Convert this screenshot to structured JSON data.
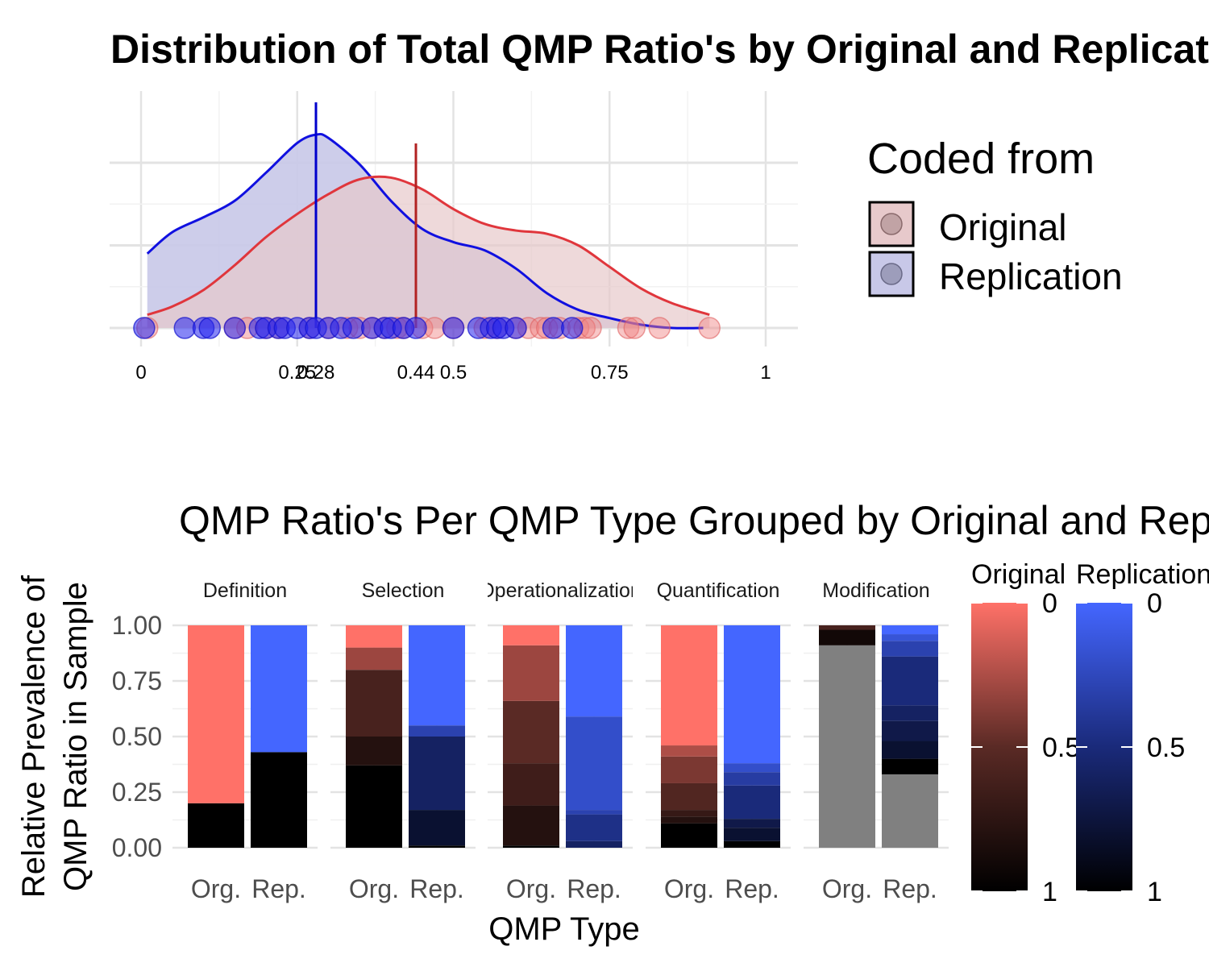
{
  "chart_data": [
    {
      "type": "density",
      "title": "Distribution of Total QMP Ratio's by Original and Replication",
      "xlim": [
        0,
        1
      ],
      "x_ticks": [
        "0",
        "0.25",
        "0.28",
        "0.44",
        "0.5",
        "0.75",
        "1"
      ],
      "x_tick_values": [
        0,
        0.25,
        0.28,
        0.44,
        0.5,
        0.75,
        1
      ],
      "y_ticks_labeled": false,
      "grid": true,
      "legend": {
        "title": "Coded from",
        "position": "right"
      },
      "series": [
        {
          "name": "Original",
          "color": "#e0363c",
          "fill": "#e7c9cb",
          "mean_line": 0.44,
          "density_curve": [
            [
              0.01,
              0.08
            ],
            [
              0.05,
              0.13
            ],
            [
              0.1,
              0.23
            ],
            [
              0.15,
              0.38
            ],
            [
              0.2,
              0.55
            ],
            [
              0.25,
              0.69
            ],
            [
              0.3,
              0.81
            ],
            [
              0.35,
              0.9
            ],
            [
              0.4,
              0.91
            ],
            [
              0.45,
              0.84
            ],
            [
              0.5,
              0.72
            ],
            [
              0.55,
              0.63
            ],
            [
              0.6,
              0.59
            ],
            [
              0.65,
              0.57
            ],
            [
              0.7,
              0.5
            ],
            [
              0.75,
              0.37
            ],
            [
              0.8,
              0.24
            ],
            [
              0.85,
              0.15
            ],
            [
              0.91,
              0.08
            ]
          ],
          "points": [
            0.01,
            0.15,
            0.17,
            0.2,
            0.22,
            0.27,
            0.3,
            0.33,
            0.35,
            0.37,
            0.39,
            0.41,
            0.42,
            0.45,
            0.47,
            0.5,
            0.55,
            0.57,
            0.6,
            0.62,
            0.64,
            0.65,
            0.67,
            0.7,
            0.71,
            0.72,
            0.78,
            0.79,
            0.83,
            0.91
          ]
        },
        {
          "name": "Replication",
          "color": "#1010e0",
          "fill": "#c8c8e8",
          "mean_line": 0.28,
          "density_curve": [
            [
              0.01,
              0.45
            ],
            [
              0.05,
              0.58
            ],
            [
              0.1,
              0.67
            ],
            [
              0.15,
              0.77
            ],
            [
              0.2,
              0.94
            ],
            [
              0.25,
              1.12
            ],
            [
              0.28,
              1.17
            ],
            [
              0.3,
              1.15
            ],
            [
              0.35,
              0.99
            ],
            [
              0.4,
              0.77
            ],
            [
              0.45,
              0.6
            ],
            [
              0.5,
              0.52
            ],
            [
              0.55,
              0.47
            ],
            [
              0.6,
              0.36
            ],
            [
              0.65,
              0.21
            ],
            [
              0.7,
              0.11
            ],
            [
              0.75,
              0.06
            ],
            [
              0.8,
              0.02
            ],
            [
              0.85,
              0.0
            ],
            [
              0.9,
              0.0
            ]
          ],
          "points": [
            0.005,
            0.07,
            0.1,
            0.11,
            0.15,
            0.19,
            0.2,
            0.22,
            0.23,
            0.25,
            0.27,
            0.28,
            0.3,
            0.32,
            0.34,
            0.37,
            0.39,
            0.4,
            0.42,
            0.44,
            0.5,
            0.54,
            0.56,
            0.57,
            0.58,
            0.6,
            0.66,
            0.69
          ]
        }
      ]
    },
    {
      "type": "stacked_bar",
      "title": "QMP Ratio's Per QMP Type Grouped by Original and Replication",
      "xlabel": "QMP Type",
      "ylabel": "Relative Prevalence of\nQMP Ratio in Sample",
      "ylim": [
        0,
        1
      ],
      "y_ticks": [
        "0.00",
        "0.25",
        "0.50",
        "0.75",
        "1.00"
      ],
      "facets": [
        "Definition",
        "Selection",
        "Operationalization",
        "Quantification",
        "Modification"
      ],
      "categories": [
        "Org.",
        "Rep."
      ],
      "legends": [
        {
          "title": "Original",
          "labels": [
            "0",
            "0.5",
            "1"
          ],
          "colors": [
            "#ff7168",
            "#5a2a25",
            "#000000"
          ]
        },
        {
          "title": "Replication",
          "labels": [
            "0",
            "0.5",
            "1"
          ],
          "colors": [
            "#4466ff",
            "#1a2a7a",
            "#000000"
          ]
        }
      ],
      "bars": {
        "Definition": {
          "Org.": [
            {
              "start": 0.0,
              "end": 0.2,
              "ratio": 1.0
            },
            {
              "start": 0.2,
              "end": 1.0,
              "ratio": 0.0
            }
          ],
          "Rep.": [
            {
              "start": 0.0,
              "end": 0.43,
              "ratio": 1.0
            },
            {
              "start": 0.43,
              "end": 1.0,
              "ratio": 0.0
            }
          ]
        },
        "Selection": {
          "Org.": [
            {
              "start": 0.0,
              "end": 0.37,
              "ratio": 1.0
            },
            {
              "start": 0.37,
              "end": 0.5,
              "ratio": 0.8
            },
            {
              "start": 0.5,
              "end": 0.8,
              "ratio": 0.6
            },
            {
              "start": 0.8,
              "end": 0.9,
              "ratio": 0.3
            },
            {
              "start": 0.9,
              "end": 1.0,
              "ratio": 0.0
            }
          ],
          "Rep.": [
            {
              "start": 0.0,
              "end": 0.01,
              "ratio": 1.0
            },
            {
              "start": 0.01,
              "end": 0.17,
              "ratio": 0.8
            },
            {
              "start": 0.17,
              "end": 0.5,
              "ratio": 0.6
            },
            {
              "start": 0.5,
              "end": 0.55,
              "ratio": 0.3
            },
            {
              "start": 0.55,
              "end": 1.0,
              "ratio": 0.0
            }
          ]
        },
        "Operationalization": {
          "Org.": [
            {
              "start": 0.0,
              "end": 0.01,
              "ratio": 1.0
            },
            {
              "start": 0.01,
              "end": 0.19,
              "ratio": 0.8
            },
            {
              "start": 0.19,
              "end": 0.38,
              "ratio": 0.65
            },
            {
              "start": 0.38,
              "end": 0.66,
              "ratio": 0.5
            },
            {
              "start": 0.66,
              "end": 0.91,
              "ratio": 0.3
            },
            {
              "start": 0.91,
              "end": 1.0,
              "ratio": 0.0
            }
          ],
          "Rep.": [
            {
              "start": 0.0,
              "end": 0.03,
              "ratio": 0.6
            },
            {
              "start": 0.03,
              "end": 0.15,
              "ratio": 0.45
            },
            {
              "start": 0.15,
              "end": 0.17,
              "ratio": 0.3
            },
            {
              "start": 0.17,
              "end": 0.59,
              "ratio": 0.2
            },
            {
              "start": 0.59,
              "end": 1.0,
              "ratio": 0.0
            }
          ]
        },
        "Quantification": {
          "Org.": [
            {
              "start": 0.0,
              "end": 0.11,
              "ratio": 1.0
            },
            {
              "start": 0.11,
              "end": 0.14,
              "ratio": 0.8
            },
            {
              "start": 0.14,
              "end": 0.17,
              "ratio": 0.7
            },
            {
              "start": 0.17,
              "end": 0.29,
              "ratio": 0.55
            },
            {
              "start": 0.29,
              "end": 0.41,
              "ratio": 0.4
            },
            {
              "start": 0.41,
              "end": 0.46,
              "ratio": 0.25
            },
            {
              "start": 0.46,
              "end": 1.0,
              "ratio": 0.0
            }
          ],
          "Rep.": [
            {
              "start": 0.0,
              "end": 0.03,
              "ratio": 1.0
            },
            {
              "start": 0.03,
              "end": 0.09,
              "ratio": 0.8
            },
            {
              "start": 0.09,
              "end": 0.13,
              "ratio": 0.7
            },
            {
              "start": 0.13,
              "end": 0.28,
              "ratio": 0.5
            },
            {
              "start": 0.28,
              "end": 0.34,
              "ratio": 0.35
            },
            {
              "start": 0.34,
              "end": 0.38,
              "ratio": 0.2
            },
            {
              "start": 0.38,
              "end": 1.0,
              "ratio": 0.0
            }
          ]
        },
        "Modification": {
          "Org.": [
            {
              "start": 0.0,
              "end": 0.91,
              "ratio": null
            },
            {
              "start": 0.91,
              "end": 0.98,
              "ratio": 0.9
            },
            {
              "start": 0.98,
              "end": 1.0,
              "ratio": 0.6
            }
          ],
          "Rep.": [
            {
              "start": 0.0,
              "end": 0.33,
              "ratio": null
            },
            {
              "start": 0.33,
              "end": 0.4,
              "ratio": 1.0
            },
            {
              "start": 0.4,
              "end": 0.48,
              "ratio": 0.8
            },
            {
              "start": 0.48,
              "end": 0.57,
              "ratio": 0.7
            },
            {
              "start": 0.57,
              "end": 0.64,
              "ratio": 0.6
            },
            {
              "start": 0.64,
              "end": 0.86,
              "ratio": 0.5
            },
            {
              "start": 0.86,
              "end": 0.93,
              "ratio": 0.3
            },
            {
              "start": 0.93,
              "end": 0.96,
              "ratio": 0.15
            },
            {
              "start": 0.96,
              "end": 1.0,
              "ratio": 0.0
            }
          ]
        }
      },
      "na_color": "#808080"
    }
  ]
}
